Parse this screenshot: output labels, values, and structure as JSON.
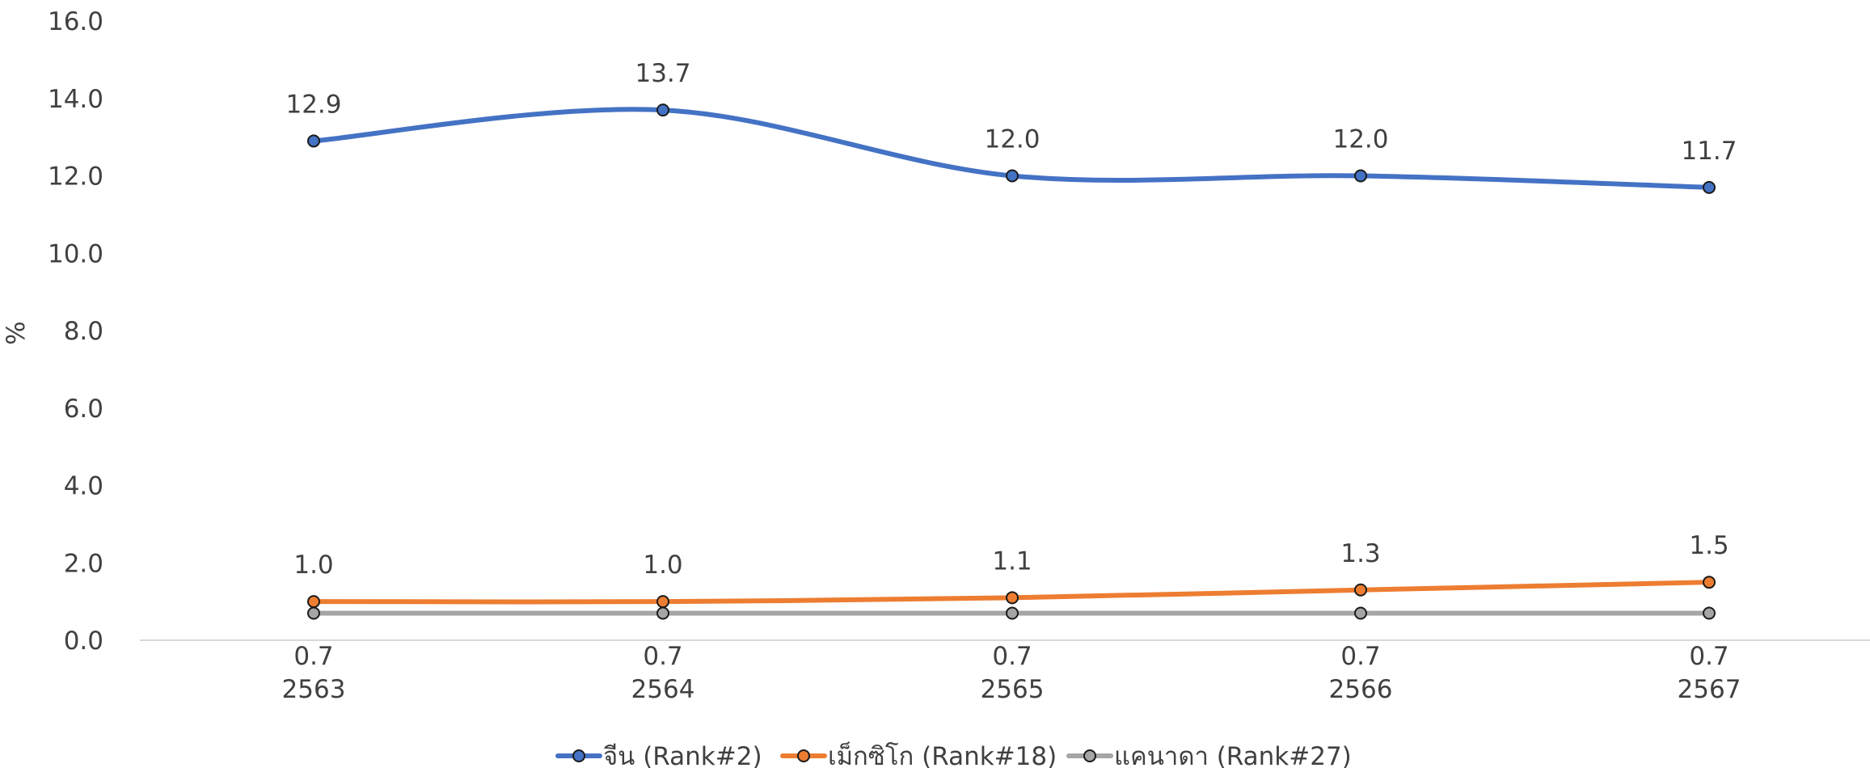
{
  "chart_data": {
    "type": "line",
    "title": "",
    "xlabel": "",
    "ylabel": "%",
    "ylim": [
      0,
      16
    ],
    "yticks": [
      "0.0",
      "2.0",
      "4.0",
      "6.0",
      "8.0",
      "10.0",
      "12.0",
      "14.0",
      "16.0"
    ],
    "categories": [
      "2563",
      "2564",
      "2565",
      "2566",
      "2567"
    ],
    "grid": false,
    "legend": "bottom",
    "series": [
      {
        "name": "จีน (Rank#2)",
        "color": "#4472C4",
        "values": [
          12.9,
          13.7,
          12.0,
          12.0,
          11.7
        ],
        "labels": [
          "12.9",
          "13.7",
          "12.0",
          "12.0",
          "11.7"
        ]
      },
      {
        "name": "เม็กซิโก (Rank#18)",
        "color": "#ED7D31",
        "values": [
          1.0,
          1.0,
          1.1,
          1.3,
          1.5
        ],
        "labels": [
          "1.0",
          "1.0",
          "1.1",
          "1.3",
          "1.5"
        ]
      },
      {
        "name": "แคนาดา (Rank#27)",
        "color": "#A5A5A5",
        "values": [
          0.7,
          0.7,
          0.7,
          0.7,
          0.7
        ],
        "labels": [
          "0.7",
          "0.7",
          "0.7",
          "0.7",
          "0.7"
        ]
      }
    ]
  }
}
